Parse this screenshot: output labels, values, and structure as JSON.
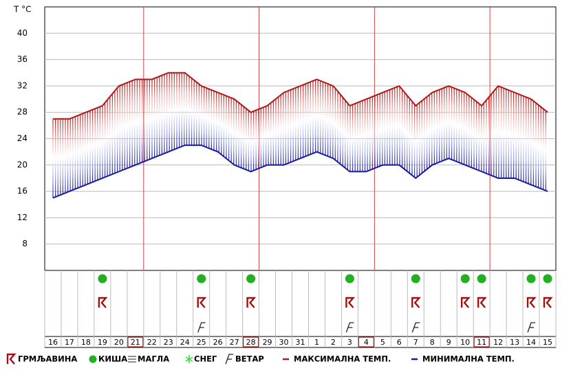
{
  "chart_data": {
    "type": "band",
    "y_label": "T °C",
    "categories": [
      "16",
      "17",
      "18",
      "19",
      "20",
      "21",
      "22",
      "23",
      "24",
      "25",
      "26",
      "27",
      "28",
      "29",
      "30",
      "31",
      "1",
      "2",
      "3",
      "4",
      "5",
      "6",
      "7",
      "8",
      "9",
      "10",
      "11",
      "12",
      "13",
      "14",
      "15"
    ],
    "series": [
      {
        "name": "МАКСИМАЛНА ТЕМП.",
        "color": "#b01818",
        "values": [
          27,
          27,
          28,
          29,
          32,
          33,
          33,
          34,
          34,
          32,
          31,
          30,
          28,
          29,
          31,
          32,
          33,
          32,
          29,
          30,
          31,
          32,
          29,
          31,
          32,
          31,
          29,
          32,
          31,
          30,
          28
        ]
      },
      {
        "name": "МИНИМАЛНА ТЕМП.",
        "color": "#1a1a9c",
        "values": [
          15,
          16,
          17,
          18,
          19,
          20,
          21,
          22,
          23,
          23,
          22,
          20,
          19,
          20,
          20,
          21,
          22,
          21,
          19,
          19,
          20,
          20,
          18,
          20,
          21,
          20,
          19,
          18,
          18,
          17,
          16
        ]
      }
    ],
    "ylim": [
      4,
      44
    ],
    "yticks": [
      8,
      12,
      16,
      20,
      24,
      28,
      32,
      36,
      40
    ],
    "grid": true,
    "highlighted_days": [
      5,
      12,
      19,
      26
    ],
    "symbols": {
      "rain": [
        3,
        9,
        12,
        18,
        22,
        25,
        26,
        29,
        30
      ],
      "thunderstorm": [
        3,
        9,
        12,
        18,
        22,
        25,
        26,
        29,
        30
      ],
      "wind": [
        9,
        18,
        22,
        29
      ]
    },
    "legend": [
      "ГРМЉАВИНА",
      "КИША",
      "МАГЛА",
      "СНЕГ",
      "ВЕТАР"
    ]
  }
}
